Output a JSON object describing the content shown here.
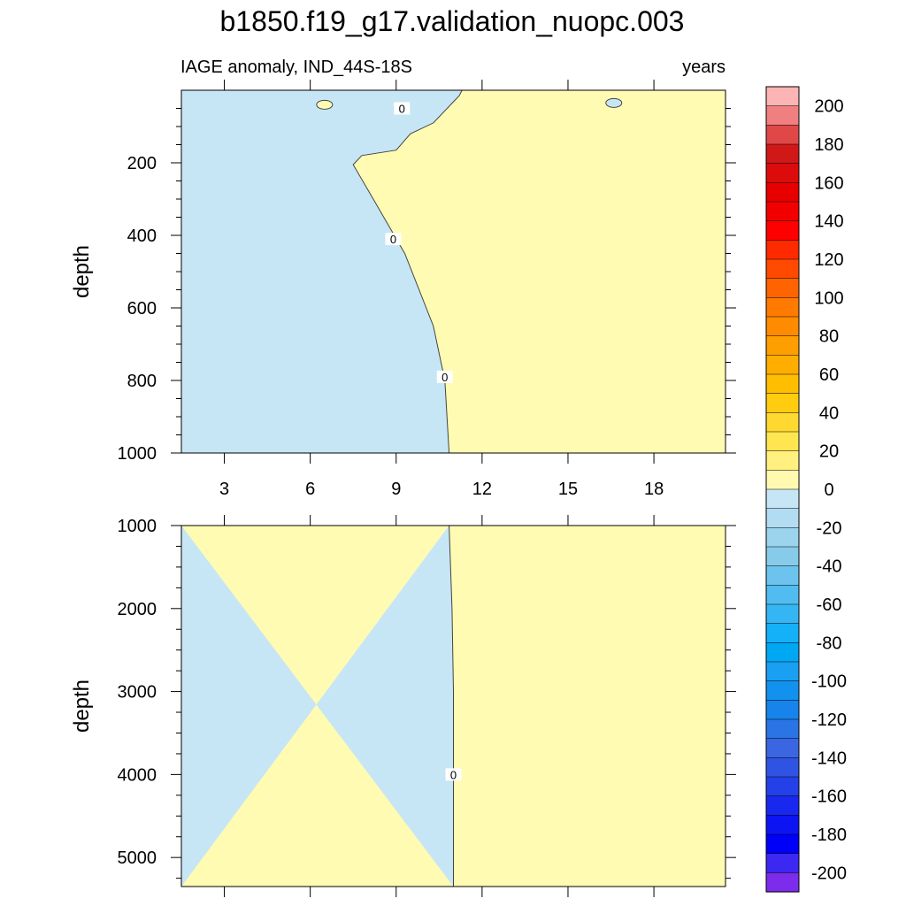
{
  "title": "b1850.f19_g17.validation_nuopc.003",
  "chart_data": {
    "type": "heatmap",
    "title": "b1850.f19_g17.validation_nuopc.003",
    "left_subtitle": "IAGE anomaly, IND_44S-18S",
    "right_subtitle": "years",
    "x_ticks": [
      "3",
      "6",
      "9",
      "12",
      "15",
      "18"
    ],
    "x_tick_values": [
      3,
      6,
      9,
      12,
      15,
      18
    ],
    "xlim": [
      1.5,
      20.5
    ],
    "panels": [
      {
        "ylabel": "depth",
        "ylim": [
          0,
          1000
        ],
        "y_ticks": [
          "200",
          "400",
          "600",
          "800",
          "1000"
        ],
        "y_tick_values": [
          200,
          400,
          600,
          800,
          1000
        ],
        "zero_contour": [
          [
            10.85,
            1000
          ],
          [
            10.7,
            800
          ],
          [
            10.3,
            650
          ],
          [
            9.3,
            450
          ],
          [
            8.2,
            300
          ],
          [
            7.5,
            205
          ],
          [
            7.8,
            180
          ],
          [
            9.0,
            165
          ],
          [
            9.5,
            120
          ],
          [
            10.3,
            90
          ],
          [
            11.2,
            15
          ],
          [
            11.3,
            0
          ]
        ],
        "contour_labels": [
          {
            "text": "0",
            "x": 9.2,
            "y": 50
          },
          {
            "text": "0",
            "x": 8.9,
            "y": 410
          },
          {
            "text": "0",
            "x": 10.7,
            "y": 790
          }
        ],
        "islands": [
          {
            "x": 6.5,
            "y": 40,
            "sign": "positive"
          },
          {
            "x": 16.6,
            "y": 35,
            "sign": "negative"
          }
        ],
        "left_value": -5,
        "right_value": 5
      },
      {
        "ylabel": "depth",
        "ylim": [
          1000,
          5350
        ],
        "y_ticks": [
          "1000",
          "2000",
          "3000",
          "4000",
          "5000"
        ],
        "y_tick_values": [
          1000,
          2000,
          3000,
          4000,
          5000
        ],
        "zero_contour": [
          [
            10.85,
            1000
          ],
          [
            10.95,
            2000
          ],
          [
            11.0,
            3000
          ],
          [
            11.0,
            4000
          ],
          [
            11.0,
            5350
          ]
        ],
        "contour_labels": [
          {
            "text": "0",
            "x": 11.0,
            "y": 4000
          }
        ],
        "left_value": -5,
        "right_value": 5
      }
    ],
    "colorbar": {
      "labels": [
        "200",
        "180",
        "160",
        "140",
        "120",
        "100",
        "80",
        "60",
        "40",
        "20",
        "0",
        "-20",
        "-40",
        "-60",
        "-80",
        "-100",
        "-120",
        "-140",
        "-160",
        "-180",
        "-200"
      ],
      "colors": [
        "#fcb4b4",
        "#f08080",
        "#e04848",
        "#d01818",
        "#dc0c0c",
        "#e80000",
        "#f20000",
        "#ff0000",
        "#ff2a00",
        "#ff4a00",
        "#ff6400",
        "#ff7a00",
        "#ff8c00",
        "#ff9e00",
        "#ffae00",
        "#ffbe00",
        "#ffcc10",
        "#ffd930",
        "#ffe650",
        "#fff080",
        "#fffab0",
        "#c6e6f6",
        "#b2dcf2",
        "#9cd4ee",
        "#86cbea",
        "#6cc4ee",
        "#50bcf0",
        "#34b6f4",
        "#14b0f8",
        "#00a8f4",
        "#1aa0f2",
        "#1292ee",
        "#1684ea",
        "#2a74e6",
        "#3a66e2",
        "#2f54e4",
        "#2440e8",
        "#1828ee",
        "#0c14f4",
        "#0000f8",
        "#3c28f0",
        "#7c2cea"
      ]
    }
  }
}
